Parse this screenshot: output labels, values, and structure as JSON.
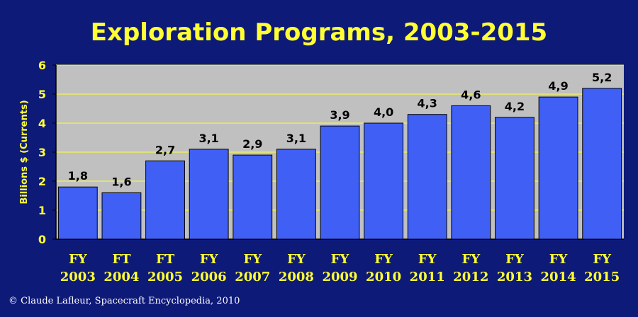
{
  "chart_data": {
    "type": "bar",
    "title": "Exploration Programs, 2003-2015",
    "ylabel": "Billions $ (Currents)",
    "xlabel": "",
    "ylim": [
      0,
      6
    ],
    "yticks": [
      "0",
      "1",
      "2",
      "3",
      "4",
      "5",
      "6"
    ],
    "grid": true,
    "categories": [
      [
        "FY",
        "2003"
      ],
      [
        "FT",
        "2004"
      ],
      [
        "FT",
        "2005"
      ],
      [
        "FY",
        "2006"
      ],
      [
        "FY",
        "2007"
      ],
      [
        "FY",
        "2008"
      ],
      [
        "FY",
        "2009"
      ],
      [
        "FY",
        "2010"
      ],
      [
        "FY",
        "2011"
      ],
      [
        "FY",
        "2012"
      ],
      [
        "FY",
        "2013"
      ],
      [
        "FY",
        "2014"
      ],
      [
        "FY",
        "2015"
      ]
    ],
    "values": [
      1.8,
      1.6,
      2.7,
      3.1,
      2.9,
      3.1,
      3.9,
      4.0,
      4.3,
      4.6,
      4.2,
      4.9,
      5.2
    ],
    "value_labels": [
      "1,8",
      "1,6",
      "2,7",
      "3,1",
      "2,9",
      "3,1",
      "3,9",
      "4,0",
      "4,3",
      "4,6",
      "4,2",
      "4,9",
      "5,2"
    ]
  },
  "credit": "© Claude Lafleur, Spacecraft Encyclopedia, 2010",
  "colors": {
    "background": "#0e1a78",
    "plot_area": "#c0c0c0",
    "bar": "#3f5ff5",
    "gridline": "#ffff33",
    "text_yellow": "#ffff33",
    "text_white": "#ffffff"
  }
}
